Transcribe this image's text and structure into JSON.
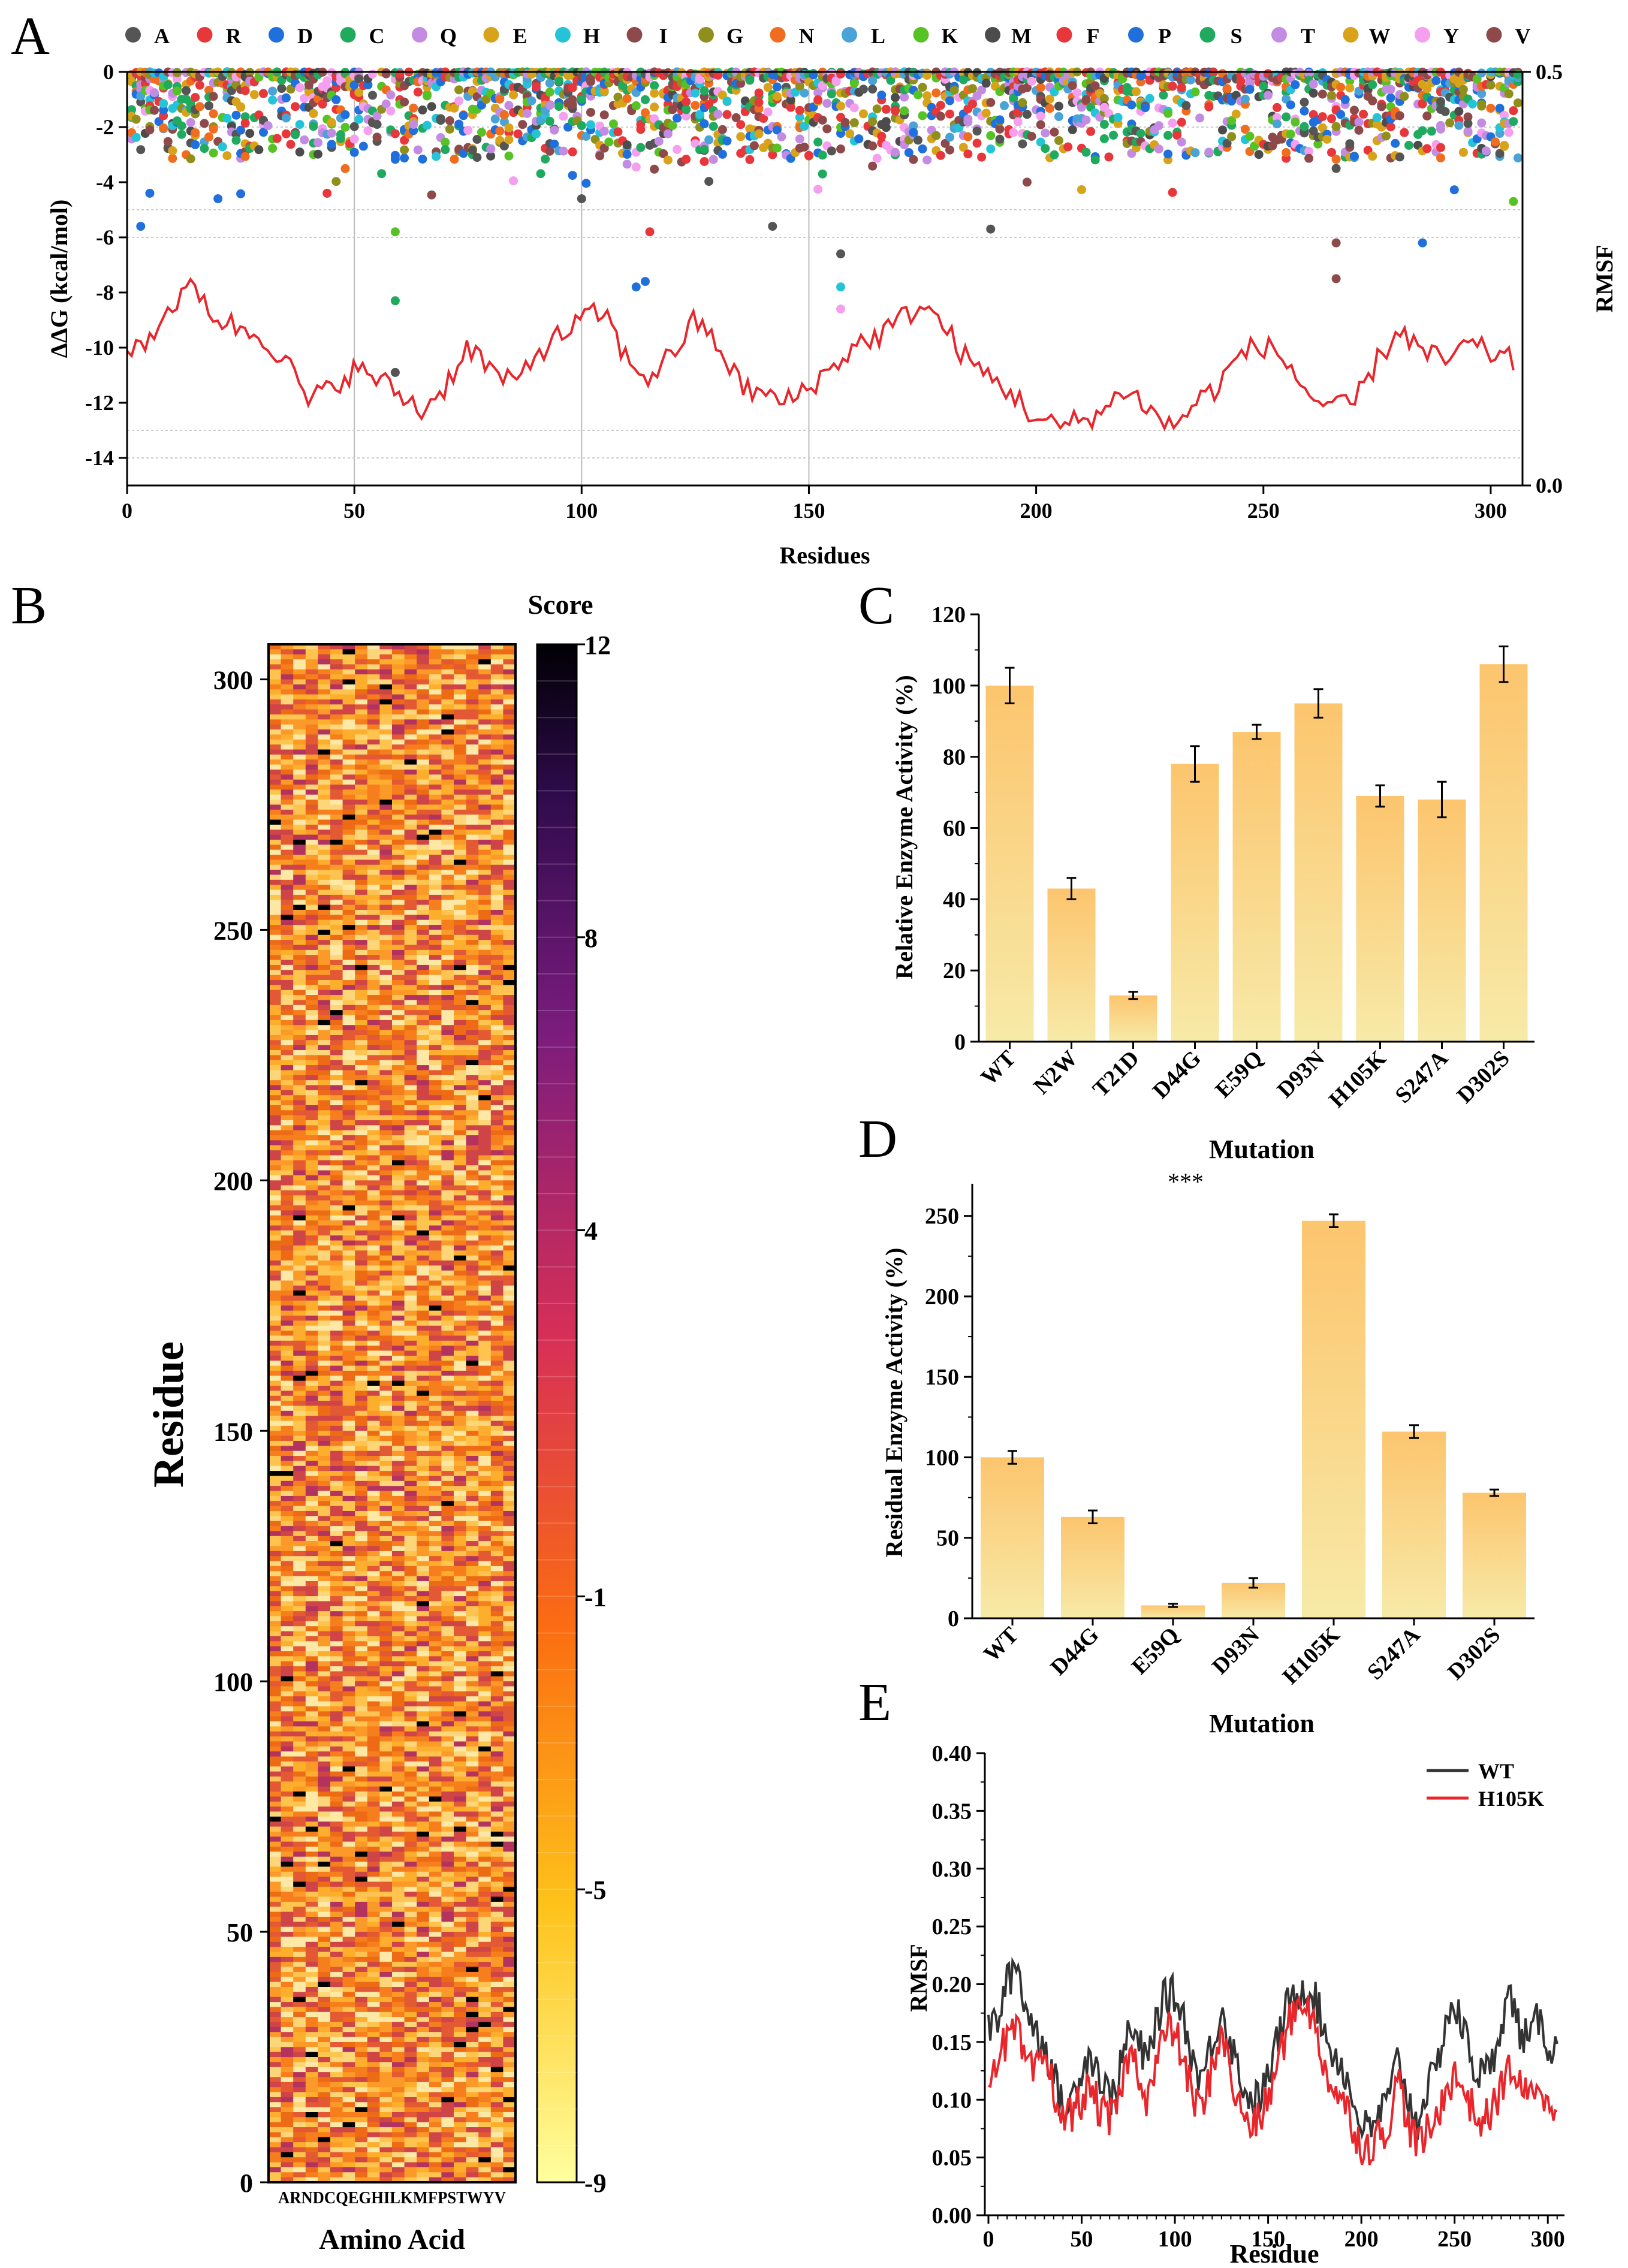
{
  "panel_labels": [
    "A",
    "B",
    "C",
    "D",
    "E"
  ],
  "chart_data": [
    {
      "panel": "A",
      "type": "scatter",
      "title": "",
      "xlabel": "Residues",
      "ylabel": "ΔΔG (kcal/mol)",
      "ylabel_right": "RMSF",
      "xlim": [
        0,
        307
      ],
      "ylim": [
        -15,
        0
      ],
      "y2lim": [
        0.0,
        0.5
      ],
      "xticks": [
        0,
        50,
        100,
        150,
        200,
        250,
        300
      ],
      "yticks": [
        0,
        -2,
        -4,
        -6,
        -8,
        -10,
        -12,
        -14
      ],
      "y2ticks": [
        "0.5",
        "0.0"
      ],
      "legend_position": "top",
      "legend": [
        {
          "label": "A",
          "color": "#555555"
        },
        {
          "label": "R",
          "color": "#e8373a"
        },
        {
          "label": "D",
          "color": "#1f6fdc"
        },
        {
          "label": "C",
          "color": "#1faa5e"
        },
        {
          "label": "Q",
          "color": "#c48be3"
        },
        {
          "label": "E",
          "color": "#d9a21b"
        },
        {
          "label": "H",
          "color": "#25c3d8"
        },
        {
          "label": "I",
          "color": "#8e4a4a"
        },
        {
          "label": "G",
          "color": "#8f8f1c"
        },
        {
          "label": "N",
          "color": "#f06c1e"
        },
        {
          "label": "L",
          "color": "#4aa3d6"
        },
        {
          "label": "K",
          "color": "#57c226"
        },
        {
          "label": "M",
          "color": "#4c4c4c"
        },
        {
          "label": "F",
          "color": "#e8373a"
        },
        {
          "label": "P",
          "color": "#1f6fdc"
        },
        {
          "label": "S",
          "color": "#1faa5e"
        },
        {
          "label": "T",
          "color": "#c48be3"
        },
        {
          "label": "W",
          "color": "#d9a21b"
        },
        {
          "label": "Y",
          "color": "#f5a0ef"
        },
        {
          "label": "V",
          "color": "#8e4a4a"
        }
      ],
      "highlighted_points": [
        {
          "x": 3,
          "y": -5.6,
          "color": "#1f6fdc"
        },
        {
          "x": 5,
          "y": -4.4,
          "color": "#1f6fdc"
        },
        {
          "x": 20,
          "y": -4.6,
          "color": "#1f6fdc"
        },
        {
          "x": 44,
          "y": -4.4,
          "color": "#e8373a"
        },
        {
          "x": 59,
          "y": -5.8,
          "color": "#57c226"
        },
        {
          "x": 59,
          "y": -8.3,
          "color": "#1faa5e"
        },
        {
          "x": 59,
          "y": -10.9,
          "color": "#555555"
        },
        {
          "x": 100,
          "y": -4.6,
          "color": "#555555"
        },
        {
          "x": 112,
          "y": -7.8,
          "color": "#1f6fdc"
        },
        {
          "x": 114,
          "y": -7.6,
          "color": "#1f6fdc"
        },
        {
          "x": 115,
          "y": -5.8,
          "color": "#e8373a"
        },
        {
          "x": 142,
          "y": -5.6,
          "color": "#555555"
        },
        {
          "x": 157,
          "y": -6.6,
          "color": "#555555"
        },
        {
          "x": 157,
          "y": -7.8,
          "color": "#25c3d8"
        },
        {
          "x": 157,
          "y": -8.6,
          "color": "#f5a0ef"
        },
        {
          "x": 190,
          "y": -5.7,
          "color": "#555555"
        },
        {
          "x": 266,
          "y": -6.2,
          "color": "#8e4a4a"
        },
        {
          "x": 266,
          "y": -7.5,
          "color": "#8e4a4a"
        },
        {
          "x": 285,
          "y": -6.2,
          "color": "#1f6fdc"
        },
        {
          "x": 305,
          "y": -4.7,
          "color": "#57c226"
        }
      ],
      "rmsf_series": {
        "name": "RMSF",
        "color": "#e8262b",
        "x": [
          0,
          5,
          10,
          15,
          20,
          25,
          30,
          35,
          40,
          45,
          50,
          55,
          60,
          65,
          70,
          75,
          80,
          85,
          90,
          95,
          100,
          105,
          110,
          115,
          120,
          125,
          130,
          135,
          140,
          145,
          150,
          155,
          160,
          165,
          170,
          175,
          180,
          185,
          190,
          195,
          200,
          205,
          210,
          215,
          220,
          225,
          230,
          235,
          240,
          245,
          250,
          255,
          260,
          265,
          270,
          275,
          280,
          285,
          290,
          295,
          300,
          305
        ],
        "values": [
          0.16,
          0.18,
          0.22,
          0.24,
          0.2,
          0.19,
          0.18,
          0.15,
          0.1,
          0.12,
          0.14,
          0.13,
          0.11,
          0.09,
          0.12,
          0.17,
          0.14,
          0.12,
          0.16,
          0.18,
          0.2,
          0.21,
          0.15,
          0.13,
          0.16,
          0.2,
          0.17,
          0.12,
          0.11,
          0.1,
          0.12,
          0.14,
          0.17,
          0.18,
          0.2,
          0.22,
          0.19,
          0.15,
          0.13,
          0.11,
          0.08,
          0.07,
          0.08,
          0.09,
          0.12,
          0.09,
          0.07,
          0.1,
          0.12,
          0.16,
          0.17,
          0.15,
          0.11,
          0.09,
          0.1,
          0.15,
          0.19,
          0.16,
          0.15,
          0.17,
          0.16,
          0.15
        ]
      }
    },
    {
      "panel": "B",
      "type": "heatmap",
      "title": "",
      "xlabel": "Amino Acid",
      "ylabel": "Residue",
      "x_tick_text": "ARNDCQEGHILKMFPSTWYV",
      "yticks": [
        0,
        50,
        100,
        150,
        200,
        250,
        300
      ],
      "ylim": [
        0,
        307
      ],
      "colorbar_title": "Score",
      "colorbar_ticks": [
        12,
        8,
        4,
        -1,
        -5,
        -9
      ],
      "colorbar_range": [
        -9,
        12
      ]
    },
    {
      "panel": "C",
      "type": "bar",
      "title": "",
      "xlabel": "Mutation",
      "ylabel": "Relative Enzyme Activity (%)",
      "categories": [
        "WT",
        "N2W",
        "T21D",
        "D44G",
        "E59Q",
        "D93N",
        "H105K",
        "S247A",
        "D302S"
      ],
      "values": [
        100,
        43,
        13,
        78,
        87,
        95,
        69,
        68,
        106
      ],
      "errors": [
        5,
        3,
        1,
        5,
        2,
        4,
        3,
        5,
        5
      ],
      "ylim": [
        0,
        120
      ],
      "yticks": [
        0,
        20,
        40,
        60,
        80,
        100,
        120
      ]
    },
    {
      "panel": "D",
      "type": "bar",
      "title": "",
      "xlabel": "Mutation",
      "ylabel": "Residual Enzyme Activity (%)",
      "categories": [
        "WT",
        "D44G",
        "E59Q",
        "D93N",
        "H105K",
        "S247A",
        "D302S"
      ],
      "values": [
        100,
        63,
        8,
        22,
        247,
        116,
        78
      ],
      "errors": [
        4,
        4,
        1,
        3,
        4,
        4,
        2
      ],
      "ylim": [
        0,
        270
      ],
      "yticks": [
        0,
        50,
        100,
        150,
        200,
        250
      ],
      "annotation": "***"
    },
    {
      "panel": "E",
      "type": "line",
      "title": "",
      "xlabel": "Residue",
      "ylabel": "RMSF",
      "xlim": [
        0,
        307
      ],
      "ylim": [
        0.0,
        0.4
      ],
      "xticks": [
        0,
        50,
        100,
        150,
        200,
        250,
        300
      ],
      "yticks": [
        "0.00",
        "0.05",
        "0.10",
        "0.15",
        "0.20",
        "0.25",
        "0.30",
        "0.35",
        "0.40"
      ],
      "legend_position": "top-right",
      "x": [
        0,
        5,
        10,
        15,
        20,
        25,
        30,
        35,
        40,
        45,
        50,
        55,
        60,
        65,
        70,
        75,
        80,
        85,
        90,
        95,
        100,
        105,
        110,
        115,
        120,
        125,
        130,
        135,
        140,
        145,
        150,
        155,
        160,
        165,
        170,
        175,
        180,
        185,
        190,
        195,
        200,
        205,
        210,
        215,
        220,
        225,
        230,
        235,
        240,
        245,
        250,
        255,
        260,
        265,
        270,
        275,
        280,
        285,
        290,
        295,
        300,
        305
      ],
      "series": [
        {
          "name": "WT",
          "color": "#333333",
          "values": [
            0.16,
            0.17,
            0.2,
            0.22,
            0.18,
            0.16,
            0.15,
            0.12,
            0.09,
            0.1,
            0.13,
            0.14,
            0.12,
            0.1,
            0.12,
            0.16,
            0.15,
            0.13,
            0.17,
            0.19,
            0.19,
            0.17,
            0.13,
            0.12,
            0.15,
            0.18,
            0.15,
            0.12,
            0.1,
            0.1,
            0.12,
            0.15,
            0.18,
            0.19,
            0.2,
            0.19,
            0.16,
            0.14,
            0.13,
            0.1,
            0.08,
            0.07,
            0.09,
            0.1,
            0.14,
            0.1,
            0.08,
            0.11,
            0.12,
            0.17,
            0.18,
            0.16,
            0.13,
            0.12,
            0.13,
            0.17,
            0.19,
            0.16,
            0.15,
            0.17,
            0.15,
            0.14
          ]
        },
        {
          "name": "H105K",
          "color": "#e8262b",
          "values": [
            0.12,
            0.14,
            0.15,
            0.16,
            0.13,
            0.12,
            0.14,
            0.11,
            0.08,
            0.09,
            0.1,
            0.11,
            0.09,
            0.08,
            0.1,
            0.14,
            0.13,
            0.1,
            0.13,
            0.16,
            0.16,
            0.13,
            0.1,
            0.09,
            0.13,
            0.16,
            0.12,
            0.09,
            0.08,
            0.08,
            0.1,
            0.13,
            0.16,
            0.18,
            0.19,
            0.16,
            0.13,
            0.11,
            0.1,
            0.08,
            0.06,
            0.06,
            0.07,
            0.08,
            0.12,
            0.08,
            0.06,
            0.07,
            0.08,
            0.11,
            0.12,
            0.11,
            0.09,
            0.08,
            0.09,
            0.11,
            0.13,
            0.11,
            0.1,
            0.12,
            0.09,
            0.1
          ]
        }
      ]
    }
  ]
}
